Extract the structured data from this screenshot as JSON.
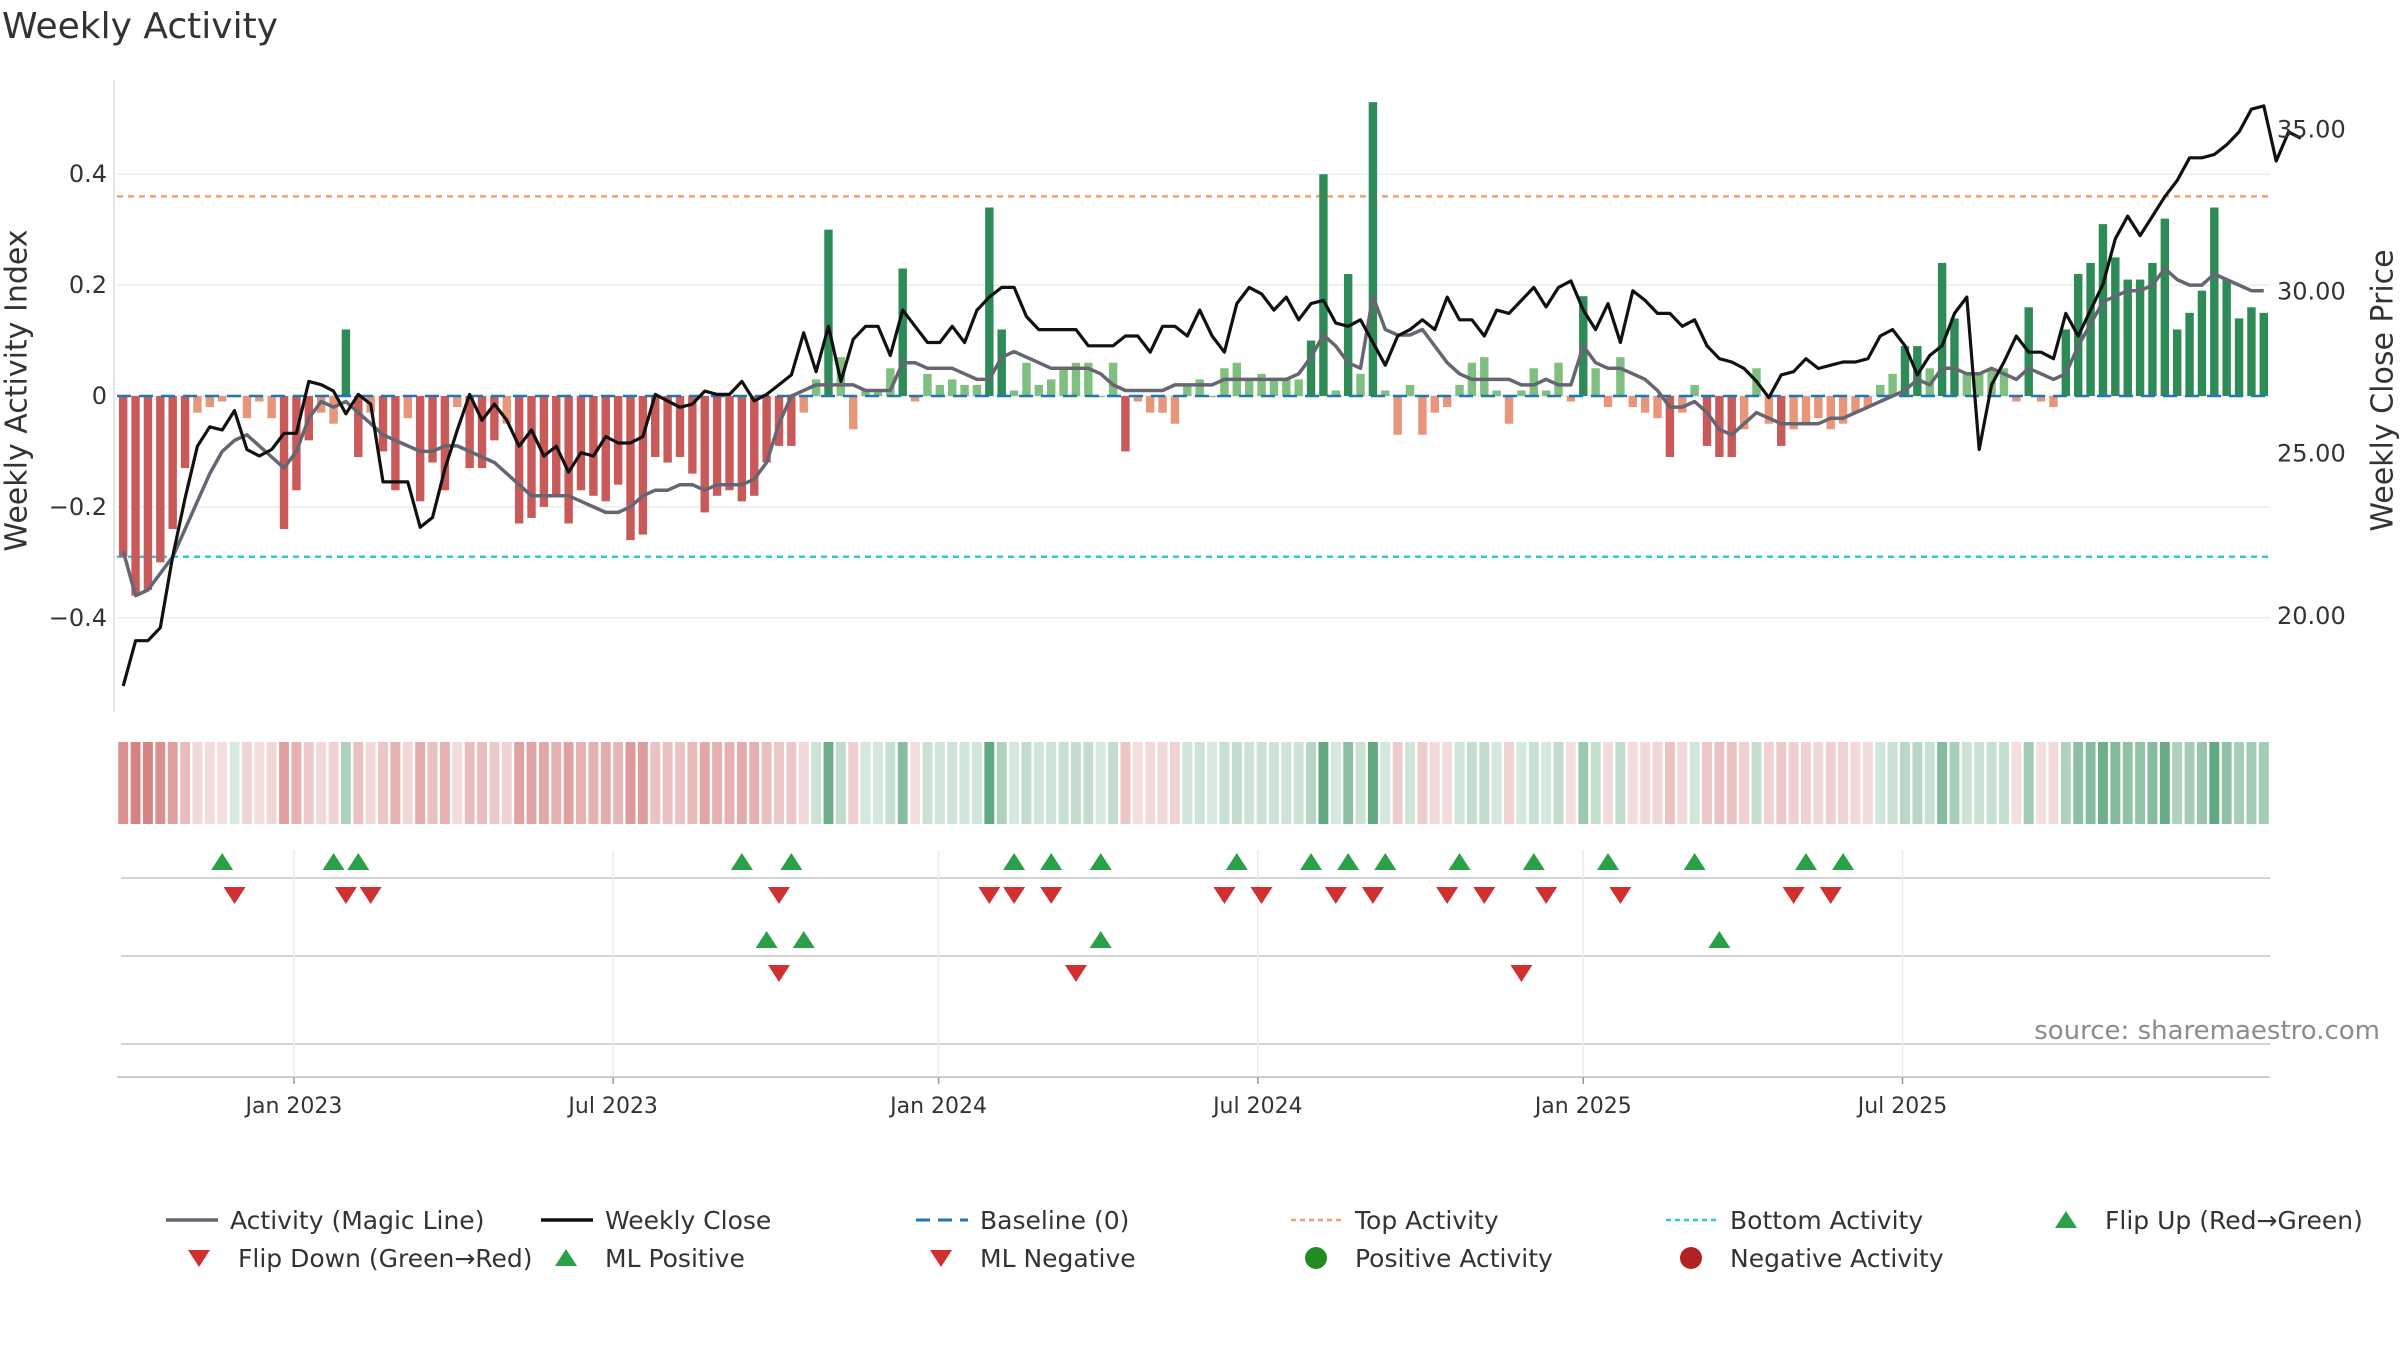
{
  "page": {
    "title": "Weekly Activity",
    "source": "source: sharemaestro.com"
  },
  "colors": {
    "magic_line": "#666672",
    "weekly_close": "#111111",
    "baseline": "#1f77b4",
    "top_activity": "#f0a070",
    "bottom_activity": "#30c8d8",
    "pos_strong": "#2e8b57",
    "pos_light": "#7fbf7f",
    "neg_strong": "#c85a5a",
    "neg_light": "#e8967a",
    "flip_up": "#2aa048",
    "flip_down": "#d03030",
    "positive_dot": "#228b22",
    "negative_dot": "#b22222"
  },
  "chart_data": {
    "type": "bar",
    "title": "Weekly Activity",
    "ylabel": "Weekly Activity Index",
    "y2label": "Weekly Close Price",
    "ylim": [
      -0.57,
      0.57
    ],
    "y2lim": [
      17.0,
      36.5
    ],
    "yticks": [
      {
        "v": 0.4,
        "label": "0.4"
      },
      {
        "v": 0.2,
        "label": "0.2"
      },
      {
        "v": 0,
        "label": "0"
      },
      {
        "v": -0.2,
        "label": "−0.2"
      },
      {
        "v": -0.4,
        "label": "−0.4"
      }
    ],
    "y2ticks": [
      {
        "v": 35,
        "label": "35.00"
      },
      {
        "v": 30,
        "label": "30.00"
      },
      {
        "v": 25,
        "label": "25.00"
      },
      {
        "v": 20,
        "label": "20.00"
      }
    ],
    "xticks": [
      {
        "week": 14.3,
        "label": "Jan 2023"
      },
      {
        "week": 40.1,
        "label": "Jul 2023"
      },
      {
        "week": 66.4,
        "label": "Jan 2024"
      },
      {
        "week": 92.2,
        "label": "Jul 2024"
      },
      {
        "week": 118.5,
        "label": "Jan 2025"
      },
      {
        "week": 144.3,
        "label": "Jul 2025"
      }
    ],
    "top_activity": 0.36,
    "bottom_activity": -0.29,
    "baseline": 0,
    "series": [
      {
        "name": "Activity (Magic Line)",
        "role": "magic_line"
      },
      {
        "name": "Weekly Close",
        "role": "close"
      }
    ],
    "activity": [
      -0.29,
      -0.36,
      -0.35,
      -0.3,
      -0.24,
      -0.13,
      -0.03,
      -0.02,
      -0.01,
      0,
      -0.04,
      -0.01,
      -0.04,
      -0.24,
      -0.17,
      -0.08,
      -0.03,
      -0.05,
      0.12,
      -0.11,
      -0.03,
      -0.1,
      -0.17,
      -0.04,
      -0.19,
      -0.12,
      -0.17,
      -0.02,
      -0.13,
      -0.13,
      -0.08,
      -0.05,
      -0.23,
      -0.22,
      -0.2,
      -0.18,
      -0.23,
      -0.17,
      -0.18,
      -0.19,
      -0.16,
      -0.26,
      -0.25,
      -0.11,
      -0.12,
      -0.11,
      -0.14,
      -0.21,
      -0.18,
      -0.17,
      -0.19,
      -0.18,
      -0.12,
      -0.09,
      -0.09,
      -0.03,
      0.03,
      0.3,
      0.07,
      -0.06,
      0.01,
      0.01,
      0.05,
      0.23,
      -0.01,
      0.04,
      0.02,
      0.03,
      0.02,
      0.02,
      0.34,
      0.12,
      0.01,
      0.06,
      0.02,
      0.03,
      0.05,
      0.06,
      0.06,
      0,
      0.06,
      -0.1,
      -0.01,
      -0.03,
      -0.03,
      -0.05,
      0.02,
      0.03,
      0,
      0.05,
      0.06,
      0.03,
      0.04,
      0.03,
      0.03,
      0.03,
      0.1,
      0.4,
      0.01,
      0.22,
      0.04,
      0.53,
      0.01,
      -0.07,
      0.02,
      -0.07,
      -0.03,
      -0.02,
      0.02,
      0.06,
      0.07,
      0.01,
      -0.05,
      0.01,
      0.05,
      0.01,
      0.06,
      -0.01,
      0.18,
      0.05,
      -0.02,
      0.07,
      -0.02,
      -0.03,
      -0.04,
      -0.11,
      -0.03,
      0.02,
      -0.09,
      -0.11,
      -0.11,
      -0.06,
      0.05,
      -0.05,
      -0.09,
      -0.06,
      -0.05,
      -0.04,
      -0.06,
      -0.05,
      -0.03,
      -0.02,
      0.02,
      0.04,
      0.09,
      0.09,
      0.05,
      0.24,
      0.14,
      0.04,
      0.04,
      0.05,
      0.05,
      -0.01,
      0.16,
      -0.01,
      -0.02,
      0.12,
      0.22,
      0.24,
      0.31,
      0.25,
      0.21,
      0.21,
      0.24,
      0.32,
      0.12,
      0.15,
      0.19,
      0.34,
      0.21,
      0.14,
      0.16,
      0.15
    ],
    "magic_line": [
      -0.28,
      -0.36,
      -0.35,
      -0.32,
      -0.29,
      -0.24,
      -0.19,
      -0.14,
      -0.1,
      -0.08,
      -0.07,
      -0.09,
      -0.11,
      -0.13,
      -0.1,
      -0.04,
      -0.01,
      -0.02,
      -0.01,
      -0.03,
      -0.05,
      -0.07,
      -0.08,
      -0.09,
      -0.1,
      -0.1,
      -0.09,
      -0.09,
      -0.1,
      -0.11,
      -0.12,
      -0.14,
      -0.16,
      -0.18,
      -0.18,
      -0.18,
      -0.18,
      -0.19,
      -0.2,
      -0.21,
      -0.21,
      -0.2,
      -0.18,
      -0.17,
      -0.17,
      -0.16,
      -0.16,
      -0.17,
      -0.16,
      -0.16,
      -0.16,
      -0.15,
      -0.12,
      -0.05,
      0,
      0.01,
      0.02,
      0.02,
      0.02,
      0.02,
      0.01,
      0.01,
      0.01,
      0.06,
      0.06,
      0.05,
      0.05,
      0.05,
      0.04,
      0.03,
      0.03,
      0.07,
      0.08,
      0.07,
      0.06,
      0.05,
      0.05,
      0.05,
      0.05,
      0.04,
      0.02,
      0.01,
      0.01,
      0.01,
      0.01,
      0.02,
      0.02,
      0.02,
      0.02,
      0.03,
      0.03,
      0.03,
      0.03,
      0.03,
      0.03,
      0.04,
      0.07,
      0.11,
      0.09,
      0.06,
      0.05,
      0.18,
      0.12,
      0.11,
      0.11,
      0.12,
      0.09,
      0.06,
      0.04,
      0.03,
      0.03,
      0.03,
      0.03,
      0.02,
      0.02,
      0.03,
      0.02,
      0.02,
      0.09,
      0.06,
      0.05,
      0.05,
      0.04,
      0.03,
      0.01,
      -0.02,
      -0.02,
      -0.01,
      -0.03,
      -0.06,
      -0.07,
      -0.05,
      -0.03,
      -0.04,
      -0.05,
      -0.05,
      -0.05,
      -0.05,
      -0.04,
      -0.04,
      -0.03,
      -0.02,
      -0.01,
      0,
      0.01,
      0.03,
      0.02,
      0.05,
      0.05,
      0.04,
      0.04,
      0.05,
      0.04,
      0.03,
      0.05,
      0.04,
      0.03,
      0.04,
      0.09,
      0.13,
      0.17,
      0.18,
      0.19,
      0.19,
      0.2,
      0.23,
      0.21,
      0.2,
      0.2,
      0.22,
      0.21,
      0.2,
      0.19,
      0.19
    ],
    "weekly_close": [
      17.8,
      19.2,
      19.2,
      19.6,
      21.8,
      23.6,
      25.2,
      25.8,
      25.7,
      26.3,
      25.1,
      24.9,
      25.1,
      25.6,
      25.6,
      27.2,
      27.1,
      26.9,
      26.2,
      26.8,
      26.5,
      24.1,
      24.1,
      24.1,
      22.7,
      23.0,
      24.5,
      25.7,
      26.8,
      26.0,
      26.5,
      26.0,
      25.2,
      25.7,
      24.9,
      25.2,
      24.4,
      25.0,
      24.9,
      25.5,
      25.3,
      25.3,
      25.5,
      26.8,
      26.6,
      26.4,
      26.5,
      26.9,
      26.8,
      26.8,
      27.2,
      26.6,
      26.8,
      27.1,
      27.4,
      28.7,
      27.5,
      28.9,
      27.2,
      28.5,
      28.9,
      28.9,
      28.0,
      29.4,
      28.9,
      28.4,
      28.4,
      28.9,
      28.4,
      29.4,
      29.8,
      30.1,
      30.1,
      29.2,
      28.8,
      28.8,
      28.8,
      28.8,
      28.3,
      28.3,
      28.3,
      28.6,
      28.6,
      28.1,
      28.9,
      28.9,
      28.6,
      29.4,
      28.6,
      28.1,
      29.6,
      30.1,
      29.9,
      29.4,
      29.8,
      29.1,
      29.6,
      29.7,
      29.0,
      28.9,
      29.1,
      28.4,
      27.7,
      28.6,
      28.8,
      29.1,
      28.8,
      29.8,
      29.1,
      29.1,
      28.6,
      29.4,
      29.3,
      29.7,
      30.1,
      29.5,
      30.1,
      30.3,
      29.4,
      28.8,
      29.6,
      28.4,
      30.0,
      29.7,
      29.3,
      29.3,
      28.9,
      29.1,
      28.3,
      27.9,
      27.8,
      27.6,
      27.2,
      26.7,
      27.4,
      27.5,
      27.9,
      27.6,
      27.7,
      27.8,
      27.8,
      27.9,
      28.6,
      28.8,
      28.3,
      27.4,
      28.0,
      28.3,
      29.3,
      29.8,
      25.1,
      27.1,
      27.8,
      28.6,
      28.1,
      28.1,
      27.9,
      29.3,
      28.6,
      29.4,
      30.2,
      31.6,
      32.3,
      31.7,
      32.3,
      32.9,
      33.4,
      34.1,
      34.1,
      34.2,
      34.5,
      34.9,
      35.6,
      35.7,
      34.0,
      34.9,
      34.7
    ],
    "flip_up_weeks": [
      8,
      17,
      19,
      50,
      54,
      72,
      75,
      79,
      90,
      96,
      99,
      102,
      108,
      114,
      120,
      127,
      136,
      139
    ],
    "flip_down_weeks": [
      9,
      18,
      20,
      53,
      70,
      72,
      75,
      89,
      92,
      98,
      101,
      107,
      110,
      115,
      121,
      135,
      138
    ],
    "ml_positive_weeks": [
      52,
      55,
      79,
      129
    ],
    "ml_negative_weeks": [
      53,
      77,
      113
    ],
    "legend": [
      {
        "label": "Activity (Magic Line)",
        "kind": "line",
        "color_key": "magic_line"
      },
      {
        "label": "Weekly Close",
        "kind": "line",
        "color_key": "weekly_close"
      },
      {
        "label": "Baseline (0)",
        "kind": "dash",
        "color_key": "baseline"
      },
      {
        "label": "Top Activity",
        "kind": "dot-line",
        "color_key": "top_activity"
      },
      {
        "label": "Bottom Activity",
        "kind": "dot-line",
        "color_key": "bottom_activity"
      },
      {
        "label": "Flip Up (Red→Green)",
        "kind": "tri-up",
        "color_key": "flip_up"
      },
      {
        "label": "Flip Down (Green→Red)",
        "kind": "tri-down",
        "color_key": "flip_down"
      },
      {
        "label": "ML Positive",
        "kind": "tri-up",
        "color_key": "flip_up"
      },
      {
        "label": "ML Negative",
        "kind": "tri-down",
        "color_key": "flip_down"
      },
      {
        "label": "Positive Activity",
        "kind": "circle",
        "color_key": "positive_dot"
      },
      {
        "label": "Negative Activity",
        "kind": "circle",
        "color_key": "negative_dot"
      }
    ]
  }
}
